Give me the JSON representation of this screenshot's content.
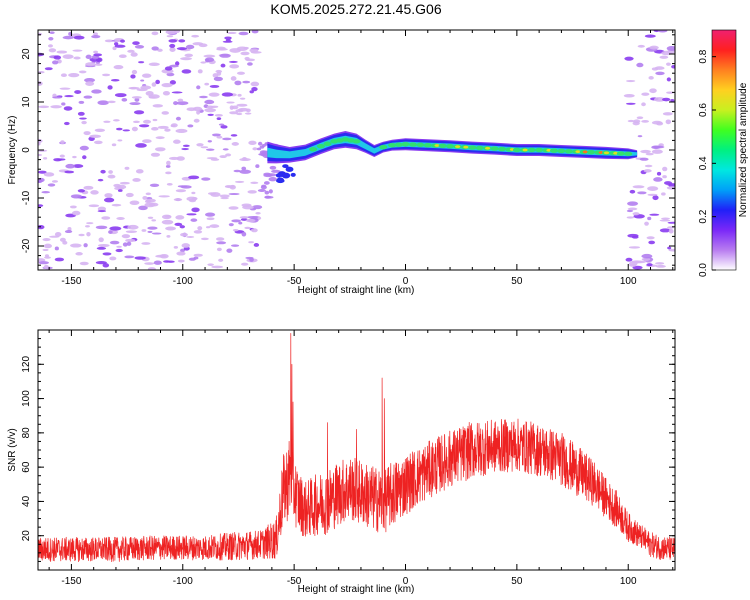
{
  "title": "KOM5.2025.272.21.45.G06",
  "colors": {
    "snr_line": "#ee2222",
    "speckle": "#d6b4f2",
    "speckle_dark": "#8a3cf0",
    "speckle_mid": "#b27ef0",
    "band_outer": "#2a2cf0",
    "band_inner": "#20c8e8",
    "band_core": "#30e070",
    "band_peak": "#e0e020",
    "band_hot": "#ff7020"
  },
  "colorbar": {
    "label": "Normalized spectral amplitude",
    "ticks": [
      "0.0",
      "0.2",
      "0.4",
      "0.6",
      "0.8"
    ],
    "tick_values": [
      0.0,
      0.2,
      0.4,
      0.6,
      0.8
    ],
    "range": [
      0,
      0.9
    ],
    "stops": [
      "#ffffff",
      "#b87cf0",
      "#7a28f8",
      "#2020f8",
      "#00a0f8",
      "#00e8e0",
      "#00f080",
      "#40ff20",
      "#c8f020",
      "#ffd020",
      "#ff8020",
      "#ff2020",
      "#f02070"
    ]
  },
  "chart_data": [
    {
      "type": "heatmap",
      "title": "KOM5.2025.272.21.45.G06",
      "xlabel": "Height of straight line (km)",
      "ylabel": "Frequency (Hz)",
      "xlim": [
        -165,
        121
      ],
      "ylim": [
        -25,
        25
      ],
      "xticks": [
        -150,
        -100,
        -50,
        0,
        50,
        100
      ],
      "xtick_labels": [
        "-150",
        "-100",
        "-50",
        "0",
        "50",
        "100"
      ],
      "yticks": [
        -20,
        -10,
        0,
        10,
        20
      ],
      "ytick_labels": [
        "-20",
        "-10",
        "0",
        "10",
        "20"
      ],
      "signal_band": {
        "description": "Doppler trace of the meteor head echo",
        "x": [
          -62,
          -58,
          -52,
          -45,
          -38,
          -32,
          -27,
          -22,
          -18,
          -14,
          -10,
          -6,
          0,
          10,
          20,
          30,
          40,
          50,
          60,
          70,
          80,
          90,
          100,
          104
        ],
        "freq": [
          -0.5,
          -0.8,
          -1.0,
          -0.5,
          0.8,
          1.8,
          2.2,
          1.8,
          0.8,
          -0.2,
          0.6,
          1.0,
          1.2,
          1.0,
          0.8,
          0.5,
          0.3,
          0.0,
          0.0,
          -0.2,
          -0.4,
          -0.6,
          -0.8,
          -0.8
        ],
        "half_width": [
          1.8,
          1.6,
          1.3,
          1.3,
          1.3,
          1.3,
          1.4,
          1.3,
          1.1,
          1.0,
          0.9,
          0.9,
          1.0,
          1.0,
          1.0,
          1.0,
          1.0,
          1.0,
          1.0,
          1.0,
          1.0,
          1.0,
          0.9,
          0.6
        ],
        "amplitude": [
          0.25,
          0.22,
          0.25,
          0.3,
          0.32,
          0.35,
          0.38,
          0.32,
          0.25,
          0.2,
          0.35,
          0.45,
          0.55,
          0.6,
          0.65,
          0.7,
          0.72,
          0.75,
          0.78,
          0.8,
          0.8,
          0.7,
          0.5,
          0.3
        ]
      },
      "noise_regions": [
        {
          "x_range": [
            -165,
            -66
          ],
          "density": "high"
        },
        {
          "x_range": [
            100,
            121
          ],
          "density": "high"
        }
      ]
    },
    {
      "type": "line",
      "xlabel": "Height of straight line (km)",
      "ylabel": "SNR (v/v)",
      "xlim": [
        -165,
        121
      ],
      "ylim": [
        0,
        140
      ],
      "xticks": [
        -150,
        -100,
        -50,
        0,
        50,
        100
      ],
      "xtick_labels": [
        "-150",
        "-100",
        "-50",
        "0",
        "50",
        "100"
      ],
      "yticks": [
        20,
        40,
        60,
        80,
        100,
        120
      ],
      "ytick_labels": [
        "20",
        "40",
        "60",
        "80",
        "100",
        "120"
      ],
      "series": [
        {
          "name": "SNR",
          "x": [
            -165,
            -150,
            -130,
            -110,
            -90,
            -75,
            -65,
            -58,
            -55,
            -52,
            -48,
            -45,
            -40,
            -35,
            -30,
            -25,
            -20,
            -15,
            -10,
            -5,
            0,
            10,
            20,
            30,
            40,
            50,
            60,
            70,
            80,
            85,
            90,
            95,
            100,
            105,
            110,
            115,
            121
          ],
          "y": [
            12,
            12,
            12,
            13,
            13,
            14,
            15,
            18,
            45,
            55,
            40,
            35,
            38,
            40,
            45,
            48,
            45,
            42,
            40,
            45,
            50,
            58,
            65,
            70,
            72,
            73,
            70,
            65,
            55,
            50,
            42,
            35,
            25,
            20,
            15,
            13,
            12
          ],
          "noise_amplitude": [
            6,
            6,
            6,
            6,
            6,
            7,
            7,
            10,
            18,
            20,
            15,
            14,
            15,
            16,
            16,
            16,
            16,
            16,
            16,
            16,
            15,
            14,
            14,
            14,
            13,
            13,
            13,
            13,
            12,
            11,
            10,
            9,
            7,
            6,
            6,
            6,
            6
          ]
        }
      ],
      "spikes": [
        {
          "x": -51.5,
          "y": 138
        },
        {
          "x": -51,
          "y": 120
        },
        {
          "x": -50.5,
          "y": 98
        },
        {
          "x": -35,
          "y": 86
        },
        {
          "x": -22,
          "y": 82
        },
        {
          "x": -10.5,
          "y": 112
        },
        {
          "x": -9.5,
          "y": 100
        }
      ]
    }
  ]
}
